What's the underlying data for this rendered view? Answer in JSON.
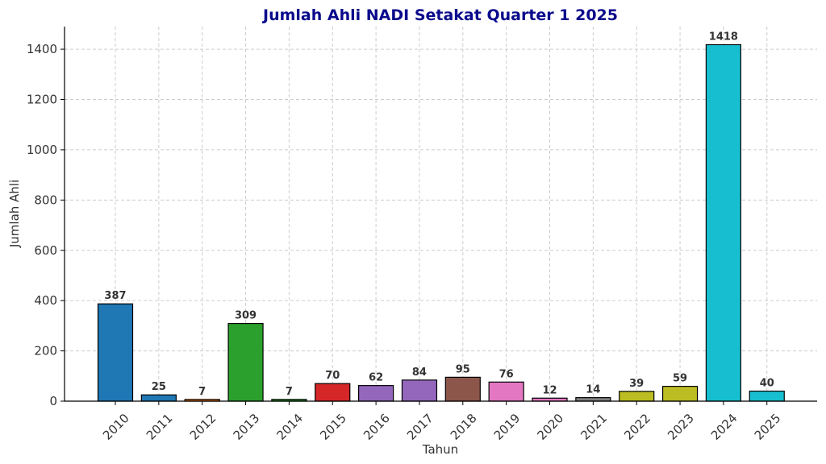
{
  "chart_data": {
    "type": "bar",
    "title": "Jumlah Ahli NADI Setakat Quarter 1 2025",
    "xlabel": "Tahun",
    "ylabel": "Jumlah Ahli",
    "ylim": [
      0,
      1490
    ],
    "yticks": [
      0,
      200,
      400,
      600,
      800,
      1000,
      1200,
      1400
    ],
    "grid": true,
    "categories": [
      "2010",
      "2011",
      "2012",
      "2013",
      "2014",
      "2015",
      "2016",
      "2017",
      "2018",
      "2019",
      "2020",
      "2021",
      "2022",
      "2023",
      "2024",
      "2025"
    ],
    "values": [
      387,
      25,
      7,
      309,
      7,
      70,
      62,
      84,
      95,
      76,
      12,
      14,
      39,
      59,
      1418,
      40
    ],
    "colors": [
      "#1f77b4",
      "#1f77b4",
      "#ff7f0e",
      "#2ca02c",
      "#2ca02c",
      "#d62728",
      "#9467bd",
      "#9467bd",
      "#8c564b",
      "#e377c2",
      "#e377c2",
      "#7f7f7f",
      "#bcbd22",
      "#bcbd22",
      "#17becf",
      "#17becf"
    ]
  }
}
